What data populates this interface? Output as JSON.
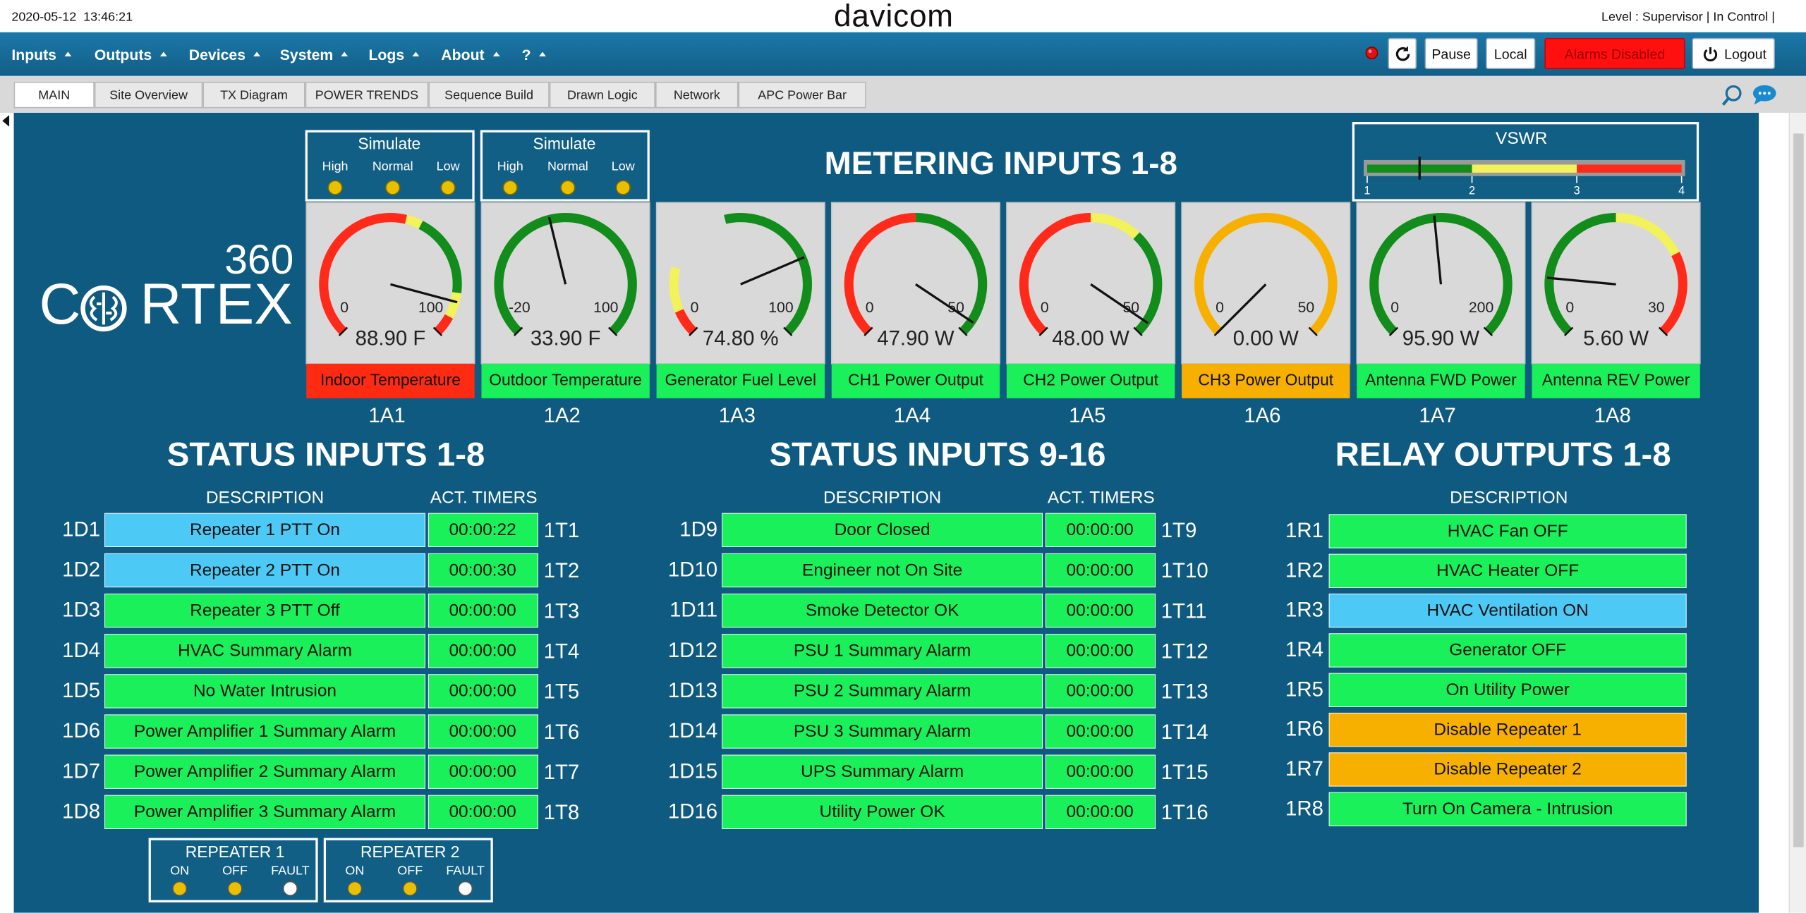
{
  "header": {
    "datetime": "2020-05-12  13:46:21",
    "brand": "davicom",
    "user_status": "Level : Supervisor | In Control |"
  },
  "menu": [
    "Inputs",
    "Outputs",
    "Devices",
    "System",
    "Logs",
    "About",
    "?"
  ],
  "toolbar": {
    "pause": "Pause",
    "local": "Local",
    "alarms": "Alarms Disabled",
    "logout": "Logout"
  },
  "tabs": [
    "MAIN",
    "Site Overview",
    "TX Diagram",
    "POWER TRENDS",
    "Sequence Build",
    "Drawn Logic",
    "Network",
    "APC Power Bar"
  ],
  "active_tab": 0,
  "logo": {
    "number": "360",
    "word_start": "C",
    "word_end": "RTEX"
  },
  "simulators": [
    {
      "title": "Simulate",
      "options": [
        "High",
        "Normal",
        "Low"
      ]
    },
    {
      "title": "Simulate",
      "options": [
        "High",
        "Normal",
        "Low"
      ]
    }
  ],
  "metering": {
    "title": "METERING INPUTS 1-8",
    "gauges": [
      {
        "id": "1A1",
        "name": "Indoor Temperature",
        "value": 88.9,
        "readout": "88.90 F",
        "min": 0,
        "max": 100,
        "status_color": "#ff2a12",
        "zones": [
          {
            "from": 0,
            "to": 55,
            "color": "#ff2a1a"
          },
          {
            "from": 55,
            "to": 60,
            "color": "#f2f25a"
          },
          {
            "from": 60,
            "to": 86,
            "color": "#128c1a"
          },
          {
            "from": 86,
            "to": 94,
            "color": "#f2f25a"
          },
          {
            "from": 94,
            "to": 100,
            "color": "#ff2a1a"
          }
        ]
      },
      {
        "id": "1A2",
        "name": "Outdoor Temperature",
        "value": 33.9,
        "readout": "33.90 F",
        "min": -20,
        "max": 100,
        "status_color": "#19f05a",
        "zones": [
          {
            "from": -20,
            "to": 100,
            "color": "#128c1a"
          }
        ]
      },
      {
        "id": "1A3",
        "name": "Generator Fuel Level",
        "value": 74.8,
        "readout": "74.80 %",
        "min": 0,
        "max": 100,
        "status_color": "#19f05a",
        "zones": [
          {
            "from": 0,
            "to": 8,
            "color": "#ff2a1a"
          },
          {
            "from": 8,
            "to": 22,
            "color": "#f2f25a"
          },
          {
            "from": 45,
            "to": 100,
            "color": "#128c1a"
          }
        ]
      },
      {
        "id": "1A4",
        "name": "CH1 Power Output",
        "value": 47.9,
        "readout": "47.90 W",
        "min": 0,
        "max": 50,
        "status_color": "#19f05a",
        "zones": [
          {
            "from": 0,
            "to": 25,
            "color": "#ff2a1a"
          },
          {
            "from": 25,
            "to": 50,
            "color": "#128c1a"
          }
        ]
      },
      {
        "id": "1A5",
        "name": "CH2 Power Output",
        "value": 48.0,
        "readout": "48.00 W",
        "min": 0,
        "max": 50,
        "status_color": "#19f05a",
        "zones": [
          {
            "from": 0,
            "to": 25,
            "color": "#ff2a1a"
          },
          {
            "from": 25,
            "to": 33,
            "color": "#f2f25a"
          },
          {
            "from": 33,
            "to": 50,
            "color": "#128c1a"
          }
        ]
      },
      {
        "id": "1A6",
        "name": "CH3 Power Output",
        "value": 0,
        "readout": "0.00 W",
        "min": 0,
        "max": 50,
        "status_color": "#f7b000",
        "zones": [
          {
            "from": 0,
            "to": 50,
            "color": "#f7b000"
          }
        ]
      },
      {
        "id": "1A7",
        "name": "Antenna FWD Power",
        "value": 95.9,
        "readout": "95.90 W",
        "min": 0,
        "max": 200,
        "status_color": "#19f05a",
        "zones": [
          {
            "from": 0,
            "to": 200,
            "color": "#128c1a"
          }
        ]
      },
      {
        "id": "1A8",
        "name": "Antenna REV Power",
        "value": 5.6,
        "readout": "5.60 W",
        "min": 0,
        "max": 30,
        "status_color": "#19f05a",
        "zones": [
          {
            "from": 0,
            "to": 15,
            "color": "#128c1a"
          },
          {
            "from": 15,
            "to": 22,
            "color": "#f2f25a"
          },
          {
            "from": 22,
            "to": 30,
            "color": "#ff2a1a"
          }
        ]
      }
    ]
  },
  "vswr": {
    "title": "VSWR",
    "xlim": [
      1,
      4
    ],
    "xticks": [
      1,
      2,
      3,
      4
    ],
    "value": 1.5,
    "zones": [
      {
        "from": 1,
        "to": 2,
        "color": "#128c1a"
      },
      {
        "from": 2,
        "to": 3,
        "color": "#f2f25a"
      },
      {
        "from": 3,
        "to": 4,
        "color": "#ff2a1a"
      }
    ]
  },
  "status_inputs": [
    {
      "title": "STATUS INPUTS 1-8",
      "headers": [
        "DESCRIPTION",
        "ACT. TIMERS"
      ],
      "rows": [
        {
          "id": "1D1",
          "description": "Repeater 1 PTT On",
          "timer": "00:00:22",
          "timer_id": "1T1",
          "color": "#4dc9f6"
        },
        {
          "id": "1D2",
          "description": "Repeater 2 PTT On",
          "timer": "00:00:30",
          "timer_id": "1T2",
          "color": "#4dc9f6"
        },
        {
          "id": "1D3",
          "description": "Repeater 3 PTT Off",
          "timer": "00:00:00",
          "timer_id": "1T3",
          "color": "#19f05a"
        },
        {
          "id": "1D4",
          "description": "HVAC Summary Alarm",
          "timer": "00:00:00",
          "timer_id": "1T4",
          "color": "#19f05a"
        },
        {
          "id": "1D5",
          "description": "No Water Intrusion",
          "timer": "00:00:00",
          "timer_id": "1T5",
          "color": "#19f05a"
        },
        {
          "id": "1D6",
          "description": "Power Amplifier 1 Summary Alarm",
          "timer": "00:00:00",
          "timer_id": "1T6",
          "color": "#19f05a"
        },
        {
          "id": "1D7",
          "description": "Power Amplifier 2 Summary Alarm",
          "timer": "00:00:00",
          "timer_id": "1T7",
          "color": "#19f05a"
        },
        {
          "id": "1D8",
          "description": "Power Amplifier 3 Summary Alarm",
          "timer": "00:00:00",
          "timer_id": "1T8",
          "color": "#19f05a"
        }
      ]
    },
    {
      "title": "STATUS INPUTS 9-16",
      "headers": [
        "DESCRIPTION",
        "ACT. TIMERS"
      ],
      "rows": [
        {
          "id": "1D9",
          "description": "Door Closed",
          "timer": "00:00:00",
          "timer_id": "1T9",
          "color": "#19f05a"
        },
        {
          "id": "1D10",
          "description": "Engineer not On Site",
          "timer": "00:00:00",
          "timer_id": "1T10",
          "color": "#19f05a"
        },
        {
          "id": "1D11",
          "description": "Smoke Detector OK",
          "timer": "00:00:00",
          "timer_id": "1T11",
          "color": "#19f05a"
        },
        {
          "id": "1D12",
          "description": "PSU 1 Summary Alarm",
          "timer": "00:00:00",
          "timer_id": "1T12",
          "color": "#19f05a"
        },
        {
          "id": "1D13",
          "description": "PSU 2 Summary Alarm",
          "timer": "00:00:00",
          "timer_id": "1T13",
          "color": "#19f05a"
        },
        {
          "id": "1D14",
          "description": "PSU 3 Summary Alarm",
          "timer": "00:00:00",
          "timer_id": "1T14",
          "color": "#19f05a"
        },
        {
          "id": "1D15",
          "description": "UPS Summary Alarm",
          "timer": "00:00:00",
          "timer_id": "1T15",
          "color": "#19f05a"
        },
        {
          "id": "1D16",
          "description": "Utility Power OK",
          "timer": "00:00:00",
          "timer_id": "1T16",
          "color": "#19f05a"
        }
      ]
    }
  ],
  "relay_outputs": {
    "title": "RELAY OUTPUTS 1-8",
    "header": "DESCRIPTION",
    "rows": [
      {
        "id": "1R1",
        "description": "HVAC Fan OFF",
        "color": "#19f05a"
      },
      {
        "id": "1R2",
        "description": "HVAC Heater OFF",
        "color": "#19f05a"
      },
      {
        "id": "1R3",
        "description": "HVAC Ventilation ON",
        "color": "#4dc9f6"
      },
      {
        "id": "1R4",
        "description": "Generator OFF",
        "color": "#19f05a"
      },
      {
        "id": "1R5",
        "description": "On Utility Power",
        "color": "#19f05a"
      },
      {
        "id": "1R6",
        "description": "Disable Repeater 1",
        "color": "#f7b000"
      },
      {
        "id": "1R7",
        "description": "Disable Repeater 2",
        "color": "#f7b000"
      },
      {
        "id": "1R8",
        "description": "Turn On Camera - Intrusion",
        "color": "#19f05a"
      }
    ]
  },
  "repeaters": [
    {
      "title": "REPEATER 1",
      "indicators": [
        {
          "label": "ON",
          "color": "#e8c000"
        },
        {
          "label": "OFF",
          "color": "#e8c000"
        },
        {
          "label": "FAULT",
          "color": "#ffffff"
        }
      ]
    },
    {
      "title": "REPEATER 2",
      "indicators": [
        {
          "label": "ON",
          "color": "#e8c000"
        },
        {
          "label": "OFF",
          "color": "#e8c000"
        },
        {
          "label": "FAULT",
          "color": "#ffffff"
        }
      ]
    }
  ]
}
